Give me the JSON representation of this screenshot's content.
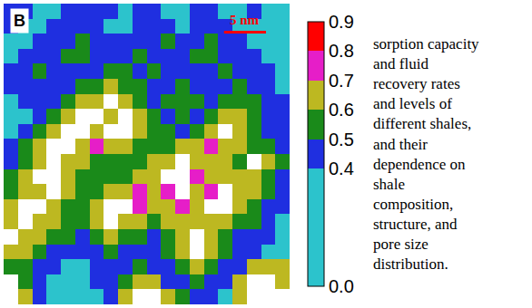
{
  "chart_data": {
    "type": "heatmap",
    "title": "B",
    "annotations": [
      "5 nm"
    ],
    "side_text": [
      "sorption capacity",
      "and fluid",
      "recovery rates",
      "and levels of",
      "different shales,",
      "and their",
      "dependence on",
      "shale",
      "composition,",
      "structure, and",
      "pore size",
      "distribution."
    ],
    "tick_labels": false,
    "xlim": [
      -0.5,
      19.5
    ],
    "ylim": [
      19.5,
      -0.5
    ],
    "colorbar_range": [
      0,
      0.9
    ],
    "colorbar_ticks": [
      {
        "value": 0,
        "label": "0.0"
      },
      0.4,
      0.5,
      0.6,
      0.7,
      0.8,
      0.9
    ],
    "colors": [
      "#2cc3cc",
      "#1f2fe0",
      "#1a8a1a",
      "#bdb821",
      "#e61ec8",
      "#ff0000"
    ],
    "cells": [
      [
        0.45,
        0.45,
        0.2,
        0.2,
        0.45,
        0.45,
        0.45,
        0.45,
        0.2,
        0.45,
        0.45,
        0.2,
        0.2,
        0.45,
        0.45,
        0.2,
        0.2,
        0.45,
        0.2,
        0.2
      ],
      [
        0.45,
        0.2,
        0.2,
        0.45,
        0.45,
        0.45,
        0.45,
        0.2,
        0.2,
        0.45,
        0.45,
        0.45,
        0.2,
        0.45,
        0.45,
        0.45,
        0.2,
        0.2,
        0.2,
        0.2
      ],
      [
        0.2,
        0.2,
        0.45,
        0.45,
        0.45,
        0.55,
        0.45,
        0.45,
        0.45,
        0.45,
        0.45,
        0.55,
        0.45,
        0.45,
        0.55,
        0.45,
        0.45,
        0.2,
        0.2,
        0.2
      ],
      [
        0.2,
        0.45,
        0.45,
        0.45,
        0.55,
        0.55,
        0.45,
        0.45,
        0.45,
        0.55,
        0.45,
        0.45,
        0.45,
        0.55,
        0.55,
        0.45,
        0.45,
        0.45,
        0.2,
        0.2
      ],
      [
        0.45,
        0.45,
        0.55,
        0.45,
        0.45,
        0.45,
        0.45,
        0.55,
        0.55,
        0.45,
        0.55,
        0.45,
        0.45,
        0.45,
        0.45,
        0.55,
        0.45,
        0.45,
        0.45,
        0.2
      ],
      [
        0.45,
        0.45,
        0.45,
        0.45,
        0.45,
        0.55,
        0.55,
        0.65,
        0.55,
        0.55,
        0.45,
        0.45,
        0.55,
        0.45,
        0.45,
        0.45,
        0.55,
        0.45,
        0.45,
        0.2
      ],
      [
        0.2,
        0.45,
        0.45,
        0.45,
        0.55,
        0.65,
        0.65,
        null,
        0.65,
        0.55,
        0.45,
        0.55,
        0.55,
        0.55,
        0.45,
        0.55,
        0.55,
        0.55,
        0.45,
        0.45
      ],
      [
        0.2,
        0.2,
        0.45,
        0.55,
        0.65,
        null,
        null,
        0.65,
        null,
        0.65,
        0.55,
        0.45,
        0.55,
        0.45,
        0.55,
        0.65,
        0.65,
        0.55,
        0.45,
        0.45
      ],
      [
        0.2,
        0.45,
        0.55,
        0.65,
        null,
        null,
        0.65,
        null,
        null,
        0.65,
        0.55,
        0.55,
        0.45,
        0.55,
        0.65,
        null,
        0.65,
        0.55,
        0.45,
        0.45
      ],
      [
        0.45,
        0.55,
        0.65,
        null,
        null,
        0.65,
        0.75,
        0.65,
        0.65,
        0.55,
        0.55,
        0.55,
        0.65,
        0.65,
        0.75,
        0.65,
        0.65,
        0.55,
        0.55,
        0.45
      ],
      [
        0.45,
        0.55,
        0.65,
        null,
        0.65,
        0.65,
        0.55,
        0.55,
        0.55,
        0.55,
        0.65,
        0.65,
        null,
        0.65,
        0.65,
        0.65,
        0.55,
        null,
        0.65,
        0.55
      ],
      [
        0.55,
        0.65,
        null,
        null,
        0.65,
        0.55,
        0.55,
        0.55,
        0.55,
        0.65,
        0.65,
        null,
        null,
        0.75,
        0.65,
        0.65,
        0.65,
        0.65,
        0.55,
        0.45
      ],
      [
        0.55,
        0.65,
        0.65,
        null,
        0.65,
        0.55,
        0.55,
        0.65,
        0.65,
        0.75,
        0.65,
        0.75,
        null,
        0.65,
        0.75,
        null,
        0.65,
        0.65,
        0.55,
        0.45
      ],
      [
        0.65,
        null,
        null,
        0.65,
        0.55,
        0.55,
        0.65,
        null,
        null,
        0.75,
        0.65,
        0.65,
        0.75,
        0.65,
        null,
        null,
        0.65,
        0.55,
        0.45,
        0.45
      ],
      [
        0.65,
        null,
        0.65,
        0.65,
        0.55,
        0.55,
        0.65,
        null,
        0.65,
        0.65,
        0.55,
        0.65,
        0.65,
        0.65,
        0.65,
        0.65,
        0.55,
        0.55,
        0.45,
        0.2
      ],
      [
        null,
        0.65,
        0.65,
        0.55,
        0.55,
        0.45,
        0.55,
        0.65,
        0.55,
        0.55,
        0.45,
        0.55,
        0.65,
        null,
        0.65,
        0.55,
        0.45,
        0.45,
        0.45,
        0.2
      ],
      [
        0.65,
        0.65,
        0.55,
        0.45,
        0.45,
        0.45,
        0.45,
        0.55,
        0.45,
        0.45,
        0.45,
        0.55,
        0.65,
        null,
        0.65,
        0.55,
        0.45,
        0.45,
        0.2,
        0.2
      ],
      [
        0.55,
        0.55,
        0.45,
        0.45,
        0.2,
        0.2,
        0.45,
        0.45,
        0.45,
        0.55,
        0.45,
        0.45,
        0.55,
        0.65,
        0.55,
        0.45,
        0.45,
        0.65,
        0.65,
        0.65
      ],
      [
        null,
        0.55,
        0.45,
        0.2,
        0.2,
        0.2,
        0.45,
        0.45,
        0.55,
        0.65,
        0.65,
        0.45,
        0.45,
        0.55,
        0.45,
        0.45,
        0.65,
        null,
        null,
        0.65
      ],
      [
        null,
        0.65,
        0.45,
        0.2,
        0.2,
        0.2,
        0.2,
        0.45,
        0.65,
        null,
        null,
        0.65,
        0.55,
        0.45,
        0.45,
        0.2,
        0.65,
        null,
        null,
        null
      ]
    ]
  }
}
